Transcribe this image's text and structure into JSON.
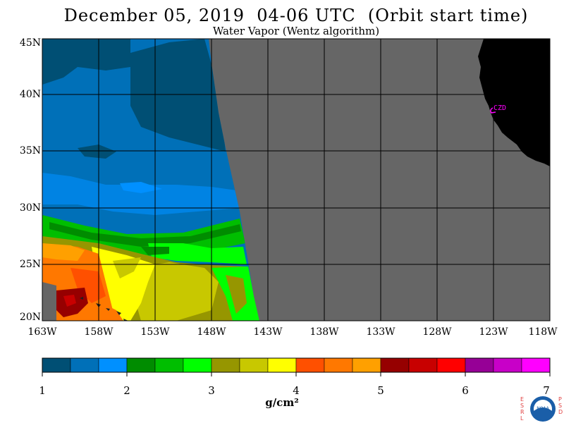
{
  "title": "December 05, 2019  04-06 UTC  (Orbit start time)",
  "subtitle": "Water Vapor (Wentz algorithm)",
  "lat_labels": [
    "45N",
    "40N",
    "35N",
    "30N",
    "25N",
    "20N"
  ],
  "lon_labels": [
    "163W",
    "158W",
    "153W",
    "148W",
    "143W",
    "138W",
    "133W",
    "128W",
    "123W",
    "118W"
  ],
  "station_label": "CZD",
  "colorbar": {
    "colors": [
      "#004f74",
      "#0070b8",
      "#0090ff",
      "#008c00",
      "#00be00",
      "#00ff00",
      "#969600",
      "#c8c800",
      "#ffff00",
      "#ff5000",
      "#ff7800",
      "#ffa000",
      "#960000",
      "#c80000",
      "#ff0000",
      "#960096",
      "#c800c8",
      "#ff00ff"
    ],
    "tick_labels": [
      "1",
      "2",
      "3",
      "4",
      "5",
      "6",
      "7"
    ],
    "unit": "g/cm²"
  },
  "colors": {
    "no_data": "#666666",
    "land": "#000000",
    "grid": "#000000",
    "station": "#ff00ff"
  },
  "logo": {
    "left_text": "ESRL",
    "right_text": "PSD",
    "emblem_text": "NOAA"
  }
}
